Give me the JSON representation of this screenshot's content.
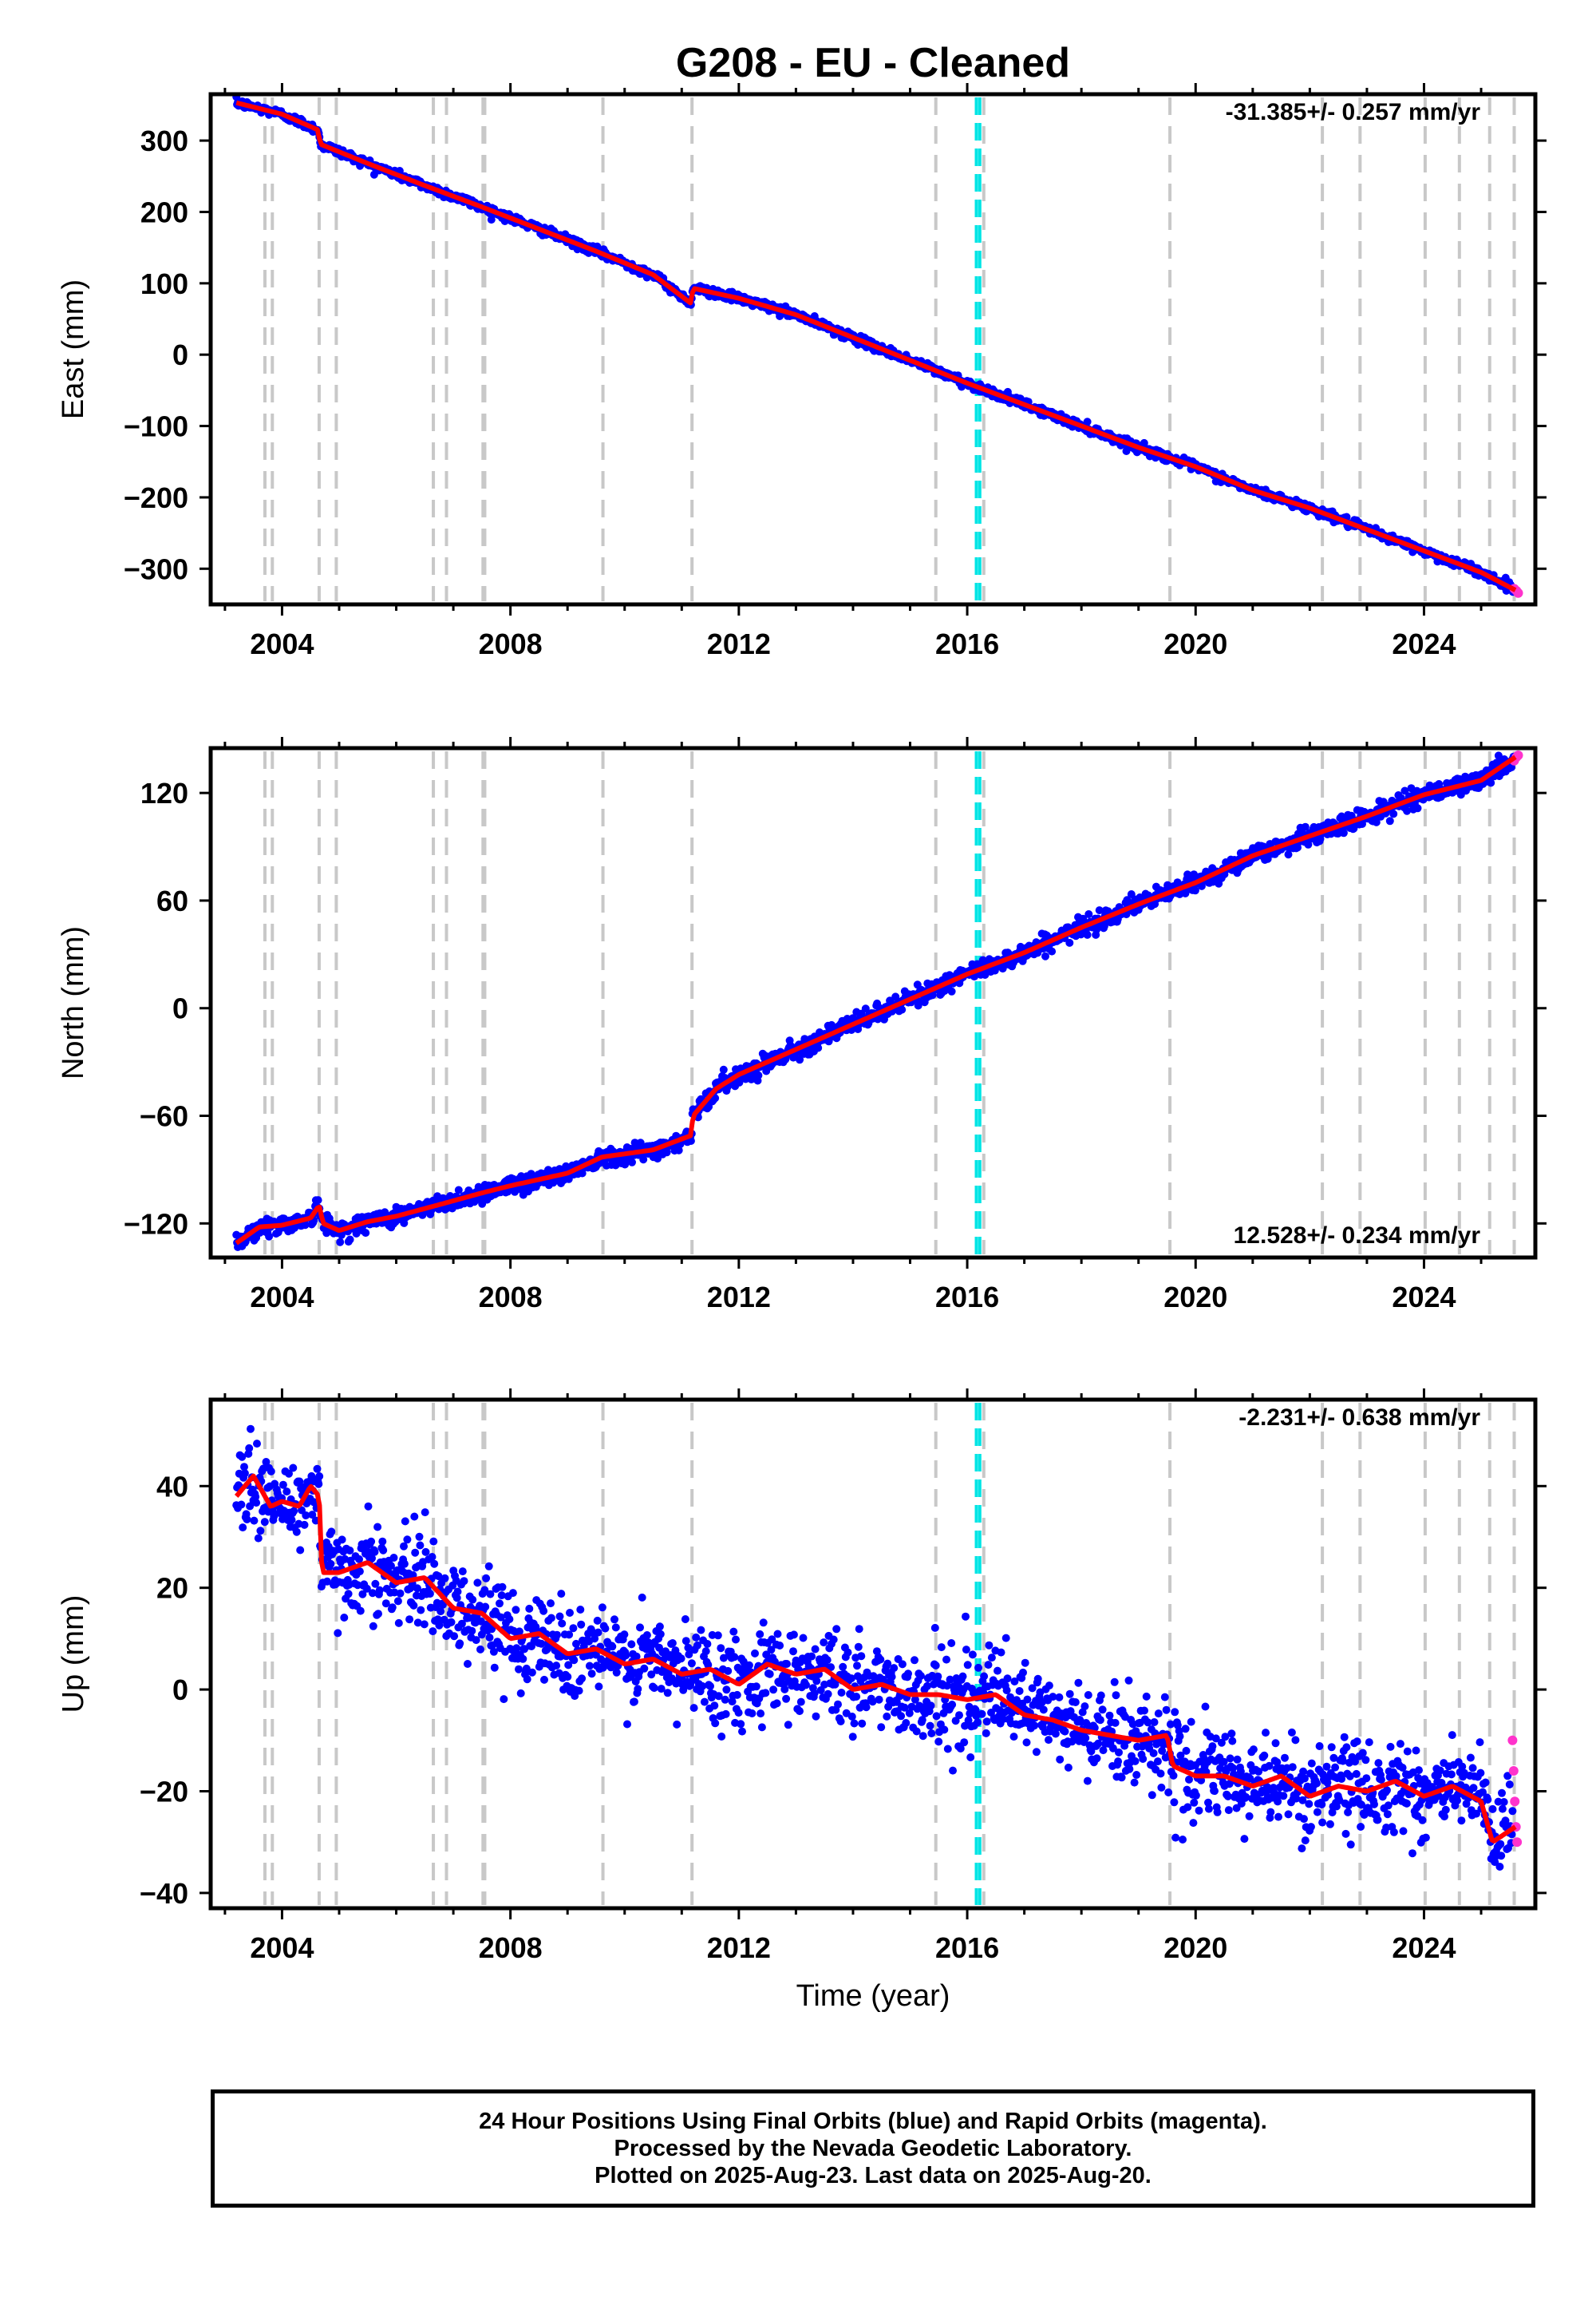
{
  "title": "G208  - EU - Cleaned",
  "colors": {
    "final_orbits": "#0000ff",
    "rapid_orbits": "#ff33cc",
    "model": "#ff0000",
    "event_lines": "#c8c8c8",
    "antenna_change": "#00e5e5"
  },
  "xaxis": {
    "label": "Time (year)",
    "range": [
      2002.75,
      2025.95
    ],
    "ticks": [
      2004,
      2008,
      2012,
      2016,
      2020,
      2024
    ],
    "tick_labels": [
      "2004",
      "2008",
      "2012",
      "2016",
      "2020",
      "2024"
    ]
  },
  "event_years": [
    2003.7,
    2003.83,
    2004.65,
    2004.95,
    2006.65,
    2006.88,
    2007.52,
    2007.55,
    2009.62,
    2011.18,
    2015.45,
    2016.29,
    2019.55,
    2022.22,
    2022.88,
    2024.02,
    2024.62,
    2025.15,
    2025.58
  ],
  "antenna_change_years": [
    2016.16,
    2016.22
  ],
  "chart_data": [
    {
      "type": "scatter",
      "name": "East",
      "ylabel": "East (mm)",
      "ylim": [
        -350,
        365
      ],
      "yticks": [
        300,
        200,
        100,
        0,
        -100,
        -200,
        -300
      ],
      "ytick_labels": [
        "300",
        "200",
        "100",
        "0",
        "−100",
        "−200",
        "−300"
      ],
      "rate_text": "-31.385+/- 0.257 mm/yr",
      "rate_position": "top-right",
      "x": [
        2003.2,
        2004.0,
        2004.63,
        2004.67,
        2005.5,
        2006.5,
        2007.5,
        2008.5,
        2009.5,
        2010.5,
        2011.16,
        2011.2,
        2012.0,
        2013.0,
        2014.0,
        2015.0,
        2016.0,
        2017.0,
        2018.0,
        2019.0,
        2020.0,
        2021.0,
        2022.0,
        2023.0,
        2024.0,
        2025.0,
        2025.6
      ],
      "y": [
        353,
        337,
        315,
        295,
        268,
        237,
        207,
        176,
        145,
        112,
        72,
        93,
        79,
        56,
        24,
        -8,
        -40,
        -70,
        -100,
        -130,
        -157,
        -190,
        -215,
        -245,
        -275,
        -305,
        -330
      ],
      "scatter_sd": 3,
      "rapid_x": [
        2025.58,
        2025.62,
        2025.65
      ],
      "rapid_y": [
        -328,
        -331,
        -334
      ]
    },
    {
      "type": "scatter",
      "name": "North",
      "ylabel": "North (mm)",
      "ylim": [
        -139,
        145
      ],
      "yticks": [
        120,
        60,
        0,
        -60,
        -120
      ],
      "ytick_labels": [
        "120",
        "60",
        "0",
        "−60",
        "−120"
      ],
      "rate_text": "12.528+/- 0.234 mm/yr",
      "rate_position": "bottom-right",
      "x": [
        2003.2,
        2003.6,
        2004.0,
        2004.5,
        2004.65,
        2004.72,
        2005.0,
        2005.5,
        2006.0,
        2006.7,
        2007.5,
        2008.0,
        2009.0,
        2009.6,
        2010.5,
        2011.16,
        2011.2,
        2011.6,
        2012.0,
        2013.0,
        2014.0,
        2015.0,
        2016.0,
        2017.0,
        2018.0,
        2019.0,
        2020.0,
        2021.0,
        2022.0,
        2023.0,
        2024.0,
        2025.0,
        2025.6
      ],
      "y": [
        -131,
        -122,
        -121,
        -117,
        -110,
        -120,
        -124,
        -119,
        -116,
        -110,
        -103,
        -99,
        -92,
        -83,
        -79,
        -71,
        -60,
        -45,
        -37,
        -23,
        -9,
        5,
        19,
        31,
        45,
        58,
        70,
        85,
        96,
        107,
        119,
        127,
        140
      ],
      "scatter_sd": 2.5,
      "rapid_x": [
        2025.58,
        2025.62,
        2025.65
      ],
      "rapid_y": [
        138,
        140,
        141
      ]
    },
    {
      "type": "scatter",
      "name": "Up",
      "ylabel": "Up (mm)",
      "ylim": [
        -43,
        57
      ],
      "yticks": [
        40,
        20,
        0,
        -20,
        -40
      ],
      "ytick_labels": [
        "40",
        "20",
        "0",
        "−20",
        "−40"
      ],
      "rate_text": "-2.231+/- 0.638 mm/yr",
      "rate_position": "top-right",
      "x": [
        2003.2,
        2003.5,
        2003.8,
        2004.0,
        2004.3,
        2004.5,
        2004.65,
        2004.7,
        2005.0,
        2005.5,
        2006.0,
        2006.5,
        2007.0,
        2007.5,
        2008.0,
        2008.5,
        2009.0,
        2009.5,
        2010.0,
        2010.5,
        2011.0,
        2011.5,
        2012.0,
        2012.5,
        2013.0,
        2013.5,
        2014.0,
        2014.5,
        2015.0,
        2015.5,
        2016.0,
        2016.5,
        2017.0,
        2017.5,
        2018.0,
        2018.5,
        2019.0,
        2019.5,
        2019.6,
        2020.0,
        2020.5,
        2021.0,
        2021.5,
        2022.0,
        2022.5,
        2023.0,
        2023.5,
        2024.0,
        2024.5,
        2025.0,
        2025.2,
        2025.6
      ],
      "y": [
        38,
        42,
        36,
        37,
        36,
        40,
        38,
        23,
        23,
        25,
        21,
        22,
        16,
        15,
        10,
        11,
        7,
        8,
        5,
        6,
        3,
        4,
        1,
        5,
        3,
        4,
        0,
        1,
        -1,
        -1,
        -2,
        -1,
        -5,
        -6,
        -8,
        -9,
        -10,
        -9,
        -15,
        -17,
        -17,
        -19,
        -17,
        -21,
        -19,
        -20,
        -18,
        -21,
        -19,
        -22,
        -30,
        -27
      ],
      "scatter_sd": 4.5,
      "rapid_x": [
        2025.55,
        2025.57,
        2025.59,
        2025.61,
        2025.63
      ],
      "rapid_y": [
        -10,
        -16,
        -22,
        -27,
        -30
      ]
    }
  ],
  "footer": {
    "line1": "24 Hour Positions Using Final Orbits (blue) and Rapid Orbits (magenta).",
    "line2": "Processed by the Nevada Geodetic Laboratory.",
    "line3": "Plotted on 2025-Aug-23. Last data on 2025-Aug-20."
  }
}
